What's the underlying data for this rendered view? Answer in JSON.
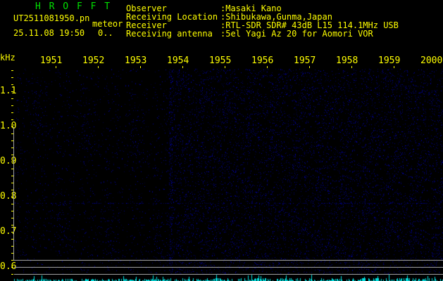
{
  "app_title": "H R O F F T",
  "file_name": "UT2511081950.pn",
  "mode_label": "meteor",
  "datetime": "25.11.08 19:50",
  "counter": "0..",
  "info": [
    {
      "label": "Observer",
      "value": ":Masaki Kano"
    },
    {
      "label": "Receiving Location",
      "value": ":Shibukawa,Gunma,Japan"
    },
    {
      "label": "Receiver",
      "value": ":RTL-SDR SDR# 43dB L15 114.1MHz USB"
    },
    {
      "label": "Receiving antenna",
      "value": ":5el Yagi Az 20 for Aomori VOR"
    }
  ],
  "y_unit": "kHz",
  "y_labels": [
    "1.1",
    "1.0",
    "0.9",
    "0.8",
    "0.7",
    "0.6"
  ],
  "time_labels": [
    "1951",
    "1952",
    "1953",
    "1954",
    "1955",
    "1956",
    "1957",
    "1958",
    "1959",
    "2000"
  ],
  "colors": {
    "text": "#ffff00",
    "title": "#00e000",
    "signal": "#2020ff",
    "level_bars": "#00e0e0",
    "frame": "#a0a0a0"
  }
}
